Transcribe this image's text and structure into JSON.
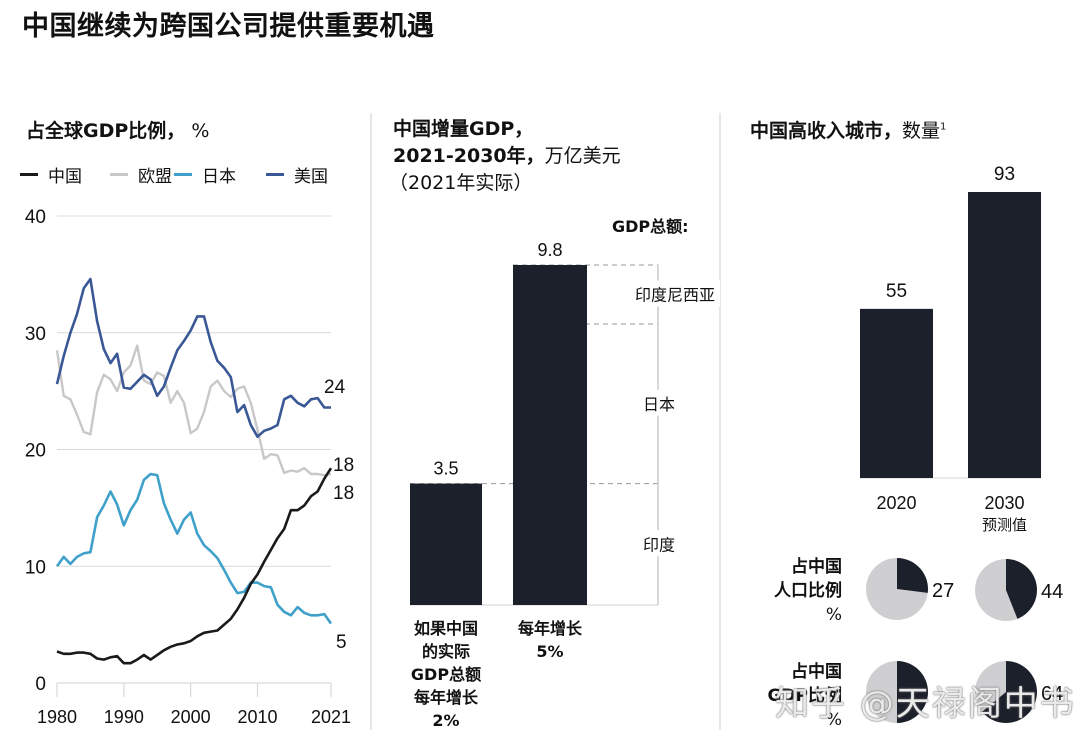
{
  "page": {
    "title": "中国继续为跨国公司提供重要机遇",
    "watermark": "知乎 @天禄阁中书"
  },
  "colors": {
    "china": "#1a1a1a",
    "eu": "#c8c8c8",
    "japan": "#3fa0c9",
    "us": "#3a5896",
    "bar": "#1c202b",
    "pie_bg": "#cfcfd1",
    "grid": "#d9d9d9"
  },
  "panel1": {
    "title": "占全球GDP比例，",
    "unit": " %",
    "legend": [
      {
        "key": "china",
        "label": "中国"
      },
      {
        "key": "eu",
        "label": "欧盟"
      },
      {
        "key": "japan",
        "label": "日本"
      },
      {
        "key": "us",
        "label": "美国"
      }
    ]
  },
  "panel2": {
    "title_line1": "中国增量GDP，",
    "title_line2_bold": "2021-2030年，",
    "title_line2_light": "万亿美元",
    "title_line3": "（2021年实际）",
    "total_header": "GDP总额:",
    "comparisons": [
      "印度尼西亚",
      "日本",
      "印度"
    ],
    "categories": [
      {
        "label_lines": [
          "如果中国",
          "的实际",
          "GDP总额",
          "每年增长",
          "2%"
        ],
        "value_label": "3.5"
      },
      {
        "label_lines": [
          "每年增长",
          "5%"
        ],
        "value_label": "9.8"
      }
    ]
  },
  "panel3": {
    "title": "中国高收入城市，",
    "title_light": "数量",
    "footnote_mark": "1",
    "categories": [
      {
        "label": "2020",
        "sub": "",
        "value_label": "55"
      },
      {
        "label": "2030",
        "sub": "预测值",
        "value_label": "93"
      }
    ],
    "pie_rows": [
      {
        "label_lines": [
          "占中国",
          "人口比例"
        ],
        "unit": "%",
        "values": [
          "27",
          "44"
        ]
      },
      {
        "label_lines": [
          "占中国",
          "GDP比例"
        ],
        "unit": "%",
        "values": [
          "",
          "64"
        ]
      }
    ]
  },
  "chart_data": [
    {
      "type": "line",
      "title": "占全球GDP比例， %",
      "xlabel": "",
      "ylabel": "%",
      "ylim": [
        0,
        40
      ],
      "xlim": [
        1980,
        2021
      ],
      "yticks": [
        "0",
        "10",
        "20",
        "30",
        "40"
      ],
      "xticks": [
        "1980",
        "1990",
        "2000",
        "2010",
        "2021"
      ],
      "grid": true,
      "legend_position": "top-left",
      "x": [
        1980,
        1981,
        1982,
        1983,
        1984,
        1985,
        1986,
        1987,
        1988,
        1989,
        1990,
        1991,
        1992,
        1993,
        1994,
        1995,
        1996,
        1997,
        1998,
        1999,
        2000,
        2001,
        2002,
        2003,
        2004,
        2005,
        2006,
        2007,
        2008,
        2009,
        2010,
        2011,
        2012,
        2013,
        2014,
        2015,
        2016,
        2017,
        2018,
        2019,
        2020,
        2021
      ],
      "series": [
        {
          "name": "中国",
          "key": "china",
          "end_label": "18",
          "values": [
            2.7,
            2.5,
            2.5,
            2.6,
            2.6,
            2.5,
            2.1,
            2.0,
            2.2,
            2.3,
            1.7,
            1.7,
            2.0,
            2.4,
            2.0,
            2.4,
            2.8,
            3.1,
            3.3,
            3.4,
            3.6,
            4.0,
            4.3,
            4.4,
            4.5,
            5.0,
            5.5,
            6.3,
            7.3,
            8.5,
            9.3,
            10.4,
            11.4,
            12.4,
            13.2,
            14.8,
            14.8,
            15.2,
            16.0,
            16.4,
            17.5,
            18.4
          ]
        },
        {
          "name": "欧盟",
          "key": "eu",
          "end_label": "18",
          "values": [
            28.5,
            24.6,
            24.3,
            23.0,
            21.5,
            21.3,
            24.9,
            26.4,
            26.0,
            25.0,
            26.6,
            27.2,
            28.9,
            25.9,
            25.6,
            26.6,
            26.3,
            24.0,
            25.0,
            24.0,
            21.4,
            21.8,
            23.2,
            25.4,
            25.9,
            25.0,
            24.5,
            25.2,
            25.4,
            24.0,
            21.7,
            19.2,
            19.6,
            19.5,
            18.0,
            18.2,
            18.1,
            18.4,
            17.9,
            17.9,
            17.8,
            17.9
          ]
        },
        {
          "name": "日本",
          "key": "japan",
          "end_label": "5",
          "values": [
            10.0,
            10.8,
            10.2,
            10.8,
            11.1,
            11.2,
            14.2,
            15.2,
            16.4,
            15.3,
            13.5,
            14.8,
            15.7,
            17.4,
            17.9,
            17.8,
            15.4,
            14.0,
            12.8,
            14.0,
            14.6,
            12.8,
            11.8,
            11.3,
            10.7,
            9.7,
            8.6,
            7.7,
            7.8,
            8.6,
            8.6,
            8.3,
            8.2,
            6.7,
            6.1,
            5.8,
            6.5,
            6.0,
            5.8,
            5.8,
            5.9,
            5.1
          ]
        },
        {
          "name": "美国",
          "key": "us",
          "end_label": "24",
          "values": [
            25.6,
            28.0,
            30.0,
            31.6,
            33.8,
            34.6,
            31.0,
            28.6,
            27.4,
            28.2,
            25.3,
            25.2,
            25.8,
            26.4,
            26.0,
            24.6,
            25.4,
            27.0,
            28.5,
            29.3,
            30.2,
            31.4,
            31.4,
            29.2,
            27.6,
            27.0,
            26.2,
            23.2,
            23.8,
            22.1,
            21.1,
            21.6,
            21.8,
            22.1,
            24.3,
            24.6,
            24.0,
            23.7,
            24.3,
            24.4,
            23.6,
            23.6
          ]
        }
      ]
    },
    {
      "type": "bar",
      "title": "中国增量GDP，2021-2030年，万亿美元（2021年实际）",
      "categories": [
        "如果中国的实际GDP总额每年增长2%",
        "每年增长5%"
      ],
      "values": [
        3.5,
        9.8
      ],
      "ylim": [
        0,
        9.8
      ],
      "reference_levels": [
        {
          "label": "印度",
          "value": 3.5
        },
        {
          "label": "日本",
          "value": 8.1
        },
        {
          "label": "印度尼西亚",
          "value": 9.8
        }
      ]
    },
    {
      "type": "bar",
      "title": "中国高收入城市，数量",
      "categories": [
        "2020",
        "2030 预测值"
      ],
      "values": [
        55,
        93
      ],
      "ylim": [
        0,
        93
      ]
    },
    {
      "type": "pie",
      "title": "占中国人口比例 %",
      "categories": [
        "2020",
        "2030"
      ],
      "values": [
        27,
        44
      ]
    },
    {
      "type": "pie",
      "title": "占中国GDP比例 %",
      "categories": [
        "2020",
        "2030"
      ],
      "values": [
        50,
        64
      ],
      "note": "2020 value label obscured by watermark; ~50 estimated from slice"
    }
  ]
}
